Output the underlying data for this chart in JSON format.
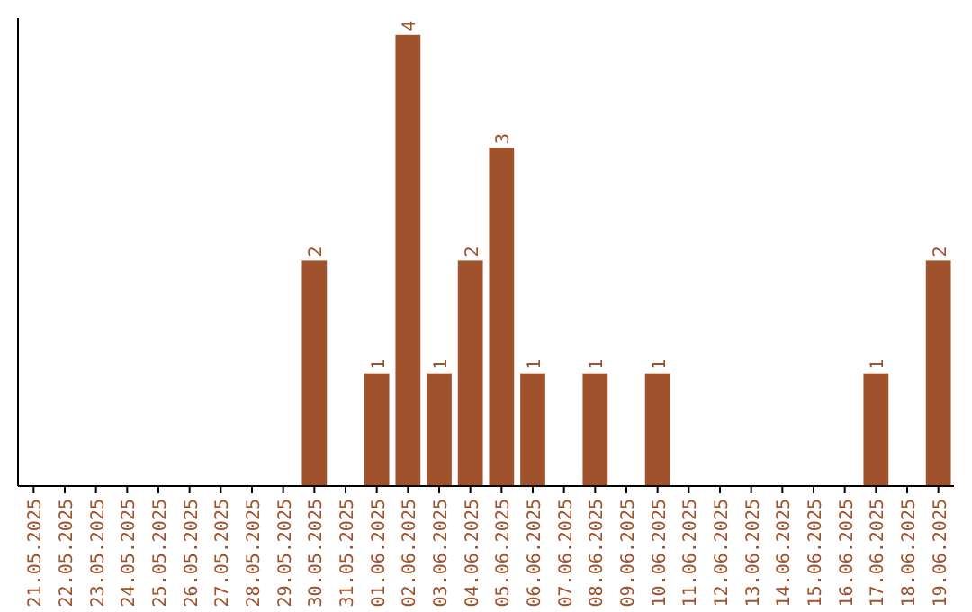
{
  "chart_data": {
    "type": "bar",
    "categories": [
      "21.05.2025",
      "22.05.2025",
      "23.05.2025",
      "24.05.2025",
      "25.05.2025",
      "26.05.2025",
      "27.05.2025",
      "28.05.2025",
      "29.05.2025",
      "30.05.2025",
      "31.05.2025",
      "01.06.2025",
      "02.06.2025",
      "03.06.2025",
      "04.06.2025",
      "05.06.2025",
      "06.06.2025",
      "07.06.2025",
      "08.06.2025",
      "09.06.2025",
      "10.06.2025",
      "11.06.2025",
      "12.06.2025",
      "13.06.2025",
      "14.06.2025",
      "15.06.2025",
      "16.06.2025",
      "17.06.2025",
      "18.06.2025",
      "19.06.2025"
    ],
    "values": [
      0,
      0,
      0,
      0,
      0,
      0,
      0,
      0,
      0,
      2,
      0,
      1,
      4,
      1,
      2,
      3,
      1,
      0,
      1,
      0,
      1,
      0,
      0,
      0,
      0,
      0,
      0,
      1,
      0,
      2
    ],
    "value_labels": [
      null,
      null,
      null,
      null,
      null,
      null,
      null,
      null,
      null,
      "2",
      null,
      "1",
      "4",
      "1",
      "2",
      "3",
      "1",
      null,
      "1",
      null,
      "1",
      null,
      null,
      null,
      null,
      null,
      null,
      "1",
      null,
      "2"
    ],
    "color": "#a0522d",
    "ylim": [
      0,
      4.15
    ],
    "tick_labels": "x"
  }
}
